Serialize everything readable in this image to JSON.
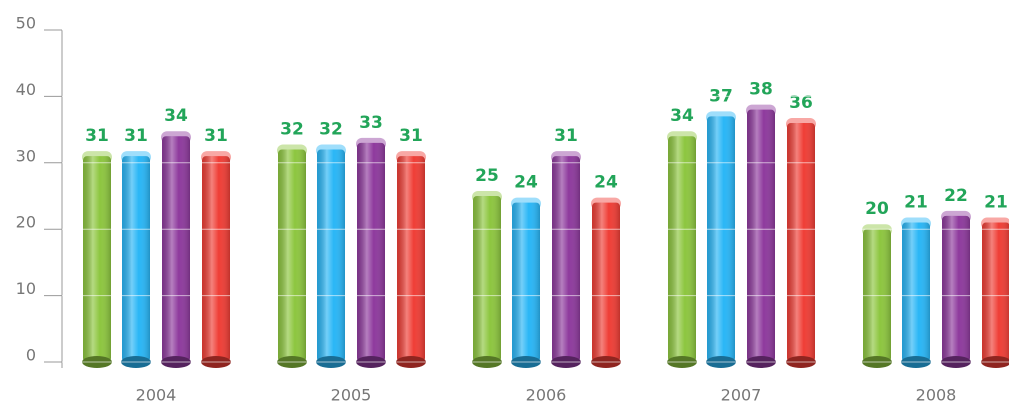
{
  "chart_data": {
    "type": "bar",
    "categories": [
      "2004",
      "2005",
      "2006",
      "2007",
      "2008"
    ],
    "series": [
      {
        "color": "#8dc63f",
        "values": [
          31,
          32,
          25,
          34,
          20
        ]
      },
      {
        "color": "#29b6f6",
        "values": [
          31,
          32,
          24,
          37,
          21
        ]
      },
      {
        "color": "#8e3a9d",
        "values": [
          34,
          33,
          31,
          38,
          22
        ]
      },
      {
        "color": "#ef3e36",
        "values": [
          31,
          31,
          24,
          36,
          21
        ]
      }
    ],
    "ylim": [
      0,
      50
    ],
    "yticks": [
      0,
      10,
      20,
      30,
      40,
      50
    ],
    "grid": true,
    "label_color": "#22a559"
  }
}
